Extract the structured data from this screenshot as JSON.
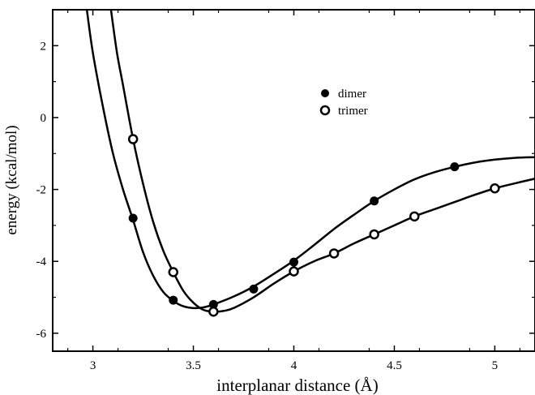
{
  "chart_data": {
    "type": "scatter",
    "title": "",
    "xlabel": "interplanar distance (Å)",
    "ylabel": "energy (kcal/mol)",
    "xlim": [
      2.8,
      5.2
    ],
    "ylim": [
      -6.5,
      3
    ],
    "xticks": [
      3,
      3.5,
      4,
      4.5,
      5
    ],
    "xtick_labels": [
      "3",
      "3.5",
      "4",
      "4.5",
      "5"
    ],
    "yticks": [
      -6,
      -4,
      -2,
      0,
      2
    ],
    "ytick_labels": [
      "-6",
      "-4",
      "-2",
      "0",
      "2"
    ],
    "grid": false,
    "legend_position": "top-right",
    "series": [
      {
        "name": "dimer",
        "marker": "filled-circle",
        "color": "#000000",
        "x": [
          3.2,
          3.4,
          3.6,
          3.8,
          4.0,
          4.4,
          4.8
        ],
        "y": [
          -2.8,
          -5.08,
          -5.2,
          -4.77,
          -4.02,
          -2.32,
          -1.37
        ],
        "fit_curve": {
          "x": [
            2.97,
            3.0,
            3.05,
            3.1,
            3.15,
            3.2,
            3.25,
            3.3,
            3.35,
            3.4,
            3.45,
            3.5,
            3.55,
            3.6,
            3.7,
            3.8,
            3.9,
            4.0,
            4.1,
            4.2,
            4.3,
            4.4,
            4.5,
            4.6,
            4.7,
            4.8,
            4.9,
            5.0,
            5.1,
            5.2
          ],
          "y": [
            3.0,
            1.8,
            0.3,
            -1.0,
            -2.0,
            -2.85,
            -3.75,
            -4.4,
            -4.85,
            -5.1,
            -5.25,
            -5.3,
            -5.28,
            -5.2,
            -4.98,
            -4.7,
            -4.35,
            -3.98,
            -3.55,
            -3.1,
            -2.7,
            -2.32,
            -2.0,
            -1.72,
            -1.52,
            -1.37,
            -1.25,
            -1.17,
            -1.12,
            -1.1
          ]
        }
      },
      {
        "name": "trimer",
        "marker": "open-circle",
        "color": "#000000",
        "x": [
          3.2,
          3.4,
          3.6,
          4.0,
          4.2,
          4.4,
          4.6,
          5.0
        ],
        "y": [
          -0.6,
          -4.3,
          -5.4,
          -4.28,
          -3.78,
          -3.25,
          -2.75,
          -1.97
        ],
        "fit_curve": {
          "x": [
            3.09,
            3.12,
            3.15,
            3.2,
            3.25,
            3.3,
            3.35,
            3.4,
            3.45,
            3.5,
            3.55,
            3.6,
            3.65,
            3.7,
            3.8,
            3.9,
            4.0,
            4.1,
            4.2,
            4.3,
            4.4,
            4.5,
            4.6,
            4.7,
            4.8,
            4.9,
            5.0,
            5.1,
            5.2
          ],
          "y": [
            3.0,
            1.8,
            0.9,
            -0.6,
            -1.85,
            -2.9,
            -3.7,
            -4.3,
            -4.82,
            -5.15,
            -5.35,
            -5.4,
            -5.38,
            -5.3,
            -5.0,
            -4.62,
            -4.28,
            -4.0,
            -3.78,
            -3.5,
            -3.25,
            -3.0,
            -2.75,
            -2.55,
            -2.35,
            -2.15,
            -1.97,
            -1.83,
            -1.7
          ]
        }
      }
    ]
  }
}
